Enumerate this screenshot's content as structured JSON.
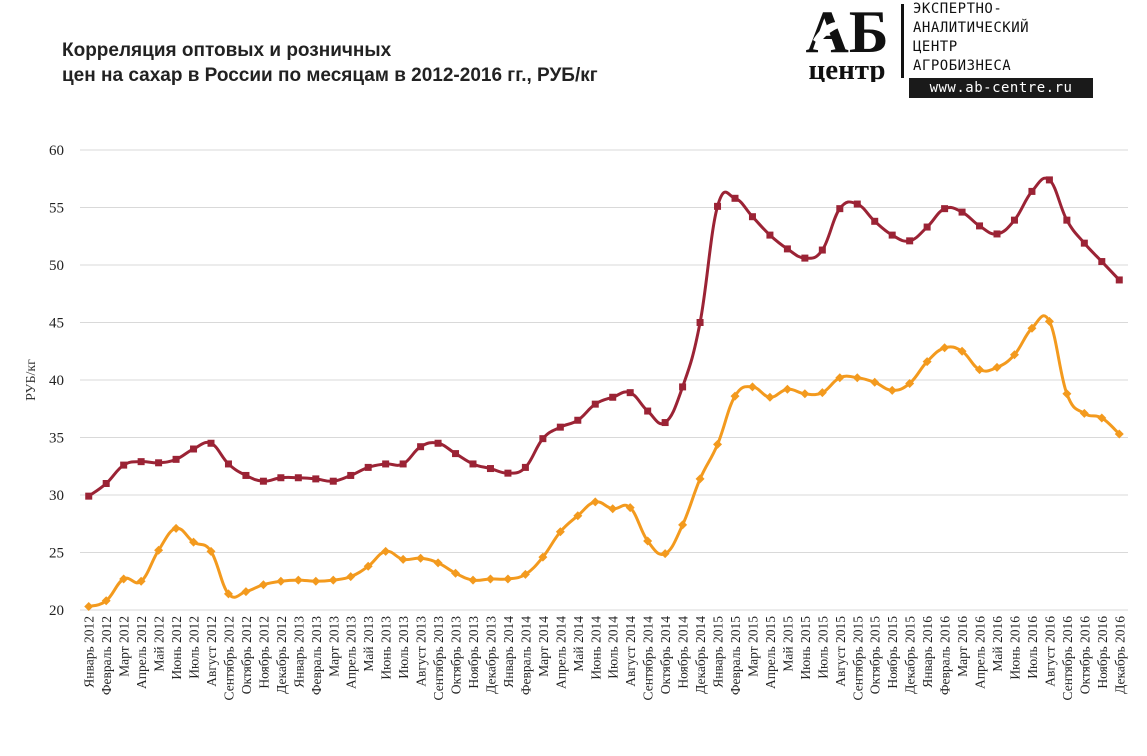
{
  "title_line1": "Корреляция оптовых и розничных",
  "title_line2": "цен на сахар в России по месяцам в 2012-2016 гг., РУБ/кг",
  "logo": {
    "mark_top": "АБ",
    "mark_bottom": "центр",
    "text_lines": [
      "ЭКСПЕРТНО-",
      "АНАЛИТИЧЕСКИЙ",
      "ЦЕНТР",
      "АГРОБИЗНЕСА"
    ],
    "url": "www.ab-centre.ru"
  },
  "colors": {
    "retail": "#9b2335",
    "wholesale": "#f39a1e",
    "grid": "#d9d9d9"
  },
  "chart_data": {
    "type": "line",
    "ylabel": "РУБ/кг",
    "ylim": [
      20,
      60
    ],
    "yticks": [
      20,
      25,
      30,
      35,
      40,
      45,
      50,
      55,
      60
    ],
    "grid": true,
    "categories": [
      "Январь 2012",
      "Февраль 2012",
      "Март 2012",
      "Апрель 2012",
      "Май 2012",
      "Июнь 2012",
      "Июль 2012",
      "Август 2012",
      "Сентябрь 2012",
      "Октябрь 2012",
      "Ноябрь 2012",
      "Декабрь 2012",
      "Январь 2013",
      "Февраль 2013",
      "Март 2013",
      "Апрель 2013",
      "Май 2013",
      "Июнь 2013",
      "Июль 2013",
      "Август 2013",
      "Сентябрь 2013",
      "Октябрь 2013",
      "Ноябрь 2013",
      "Декабрь 2013",
      "Январь 2014",
      "Февраль 2014",
      "Март 2014",
      "Апрель 2014",
      "Май 2014",
      "Июнь 2014",
      "Июль 2014",
      "Август 2014",
      "Сентябрь 2014",
      "Октябрь 2014",
      "Ноябрь 2014",
      "Декабрь 2014",
      "Январь 2015",
      "Февраль 2015",
      "Март 2015",
      "Апрель 2015",
      "Май 2015",
      "Июнь 2015",
      "Июль 2015",
      "Август 2015",
      "Сентябрь 2015",
      "Октябрь 2015",
      "Ноябрь 2015",
      "Декабрь 2015",
      "Январь 2016",
      "Февраль 2016",
      "Март 2016",
      "Апрель 2016",
      "Май 2016",
      "Июнь 2016",
      "Июль 2016",
      "Август 2016",
      "Сентябрь 2016",
      "Октябрь 2016",
      "Ноябрь 2016",
      "Декабрь 2016"
    ],
    "series": [
      {
        "key": "retail",
        "values": [
          29.9,
          31.0,
          32.6,
          32.9,
          32.8,
          33.1,
          34.0,
          34.5,
          32.7,
          31.7,
          31.2,
          31.5,
          31.5,
          31.4,
          31.2,
          31.7,
          32.4,
          32.7,
          32.7,
          34.2,
          34.5,
          33.6,
          32.7,
          32.3,
          31.9,
          32.4,
          34.9,
          35.9,
          36.5,
          37.9,
          38.5,
          38.9,
          37.3,
          36.3,
          39.4,
          45.0,
          55.1,
          55.8,
          54.2,
          52.6,
          51.4,
          50.6,
          51.3,
          54.9,
          55.3,
          53.8,
          52.6,
          52.1,
          53.3,
          54.9,
          54.6,
          53.4,
          52.7,
          53.9,
          56.4,
          57.4,
          53.9,
          51.9,
          50.3,
          48.7
        ]
      },
      {
        "key": "wholesale",
        "values": [
          20.3,
          20.8,
          22.7,
          22.5,
          25.2,
          27.1,
          25.9,
          25.1,
          21.4,
          21.6,
          22.2,
          22.5,
          22.6,
          22.5,
          22.6,
          22.9,
          23.8,
          25.1,
          24.4,
          24.5,
          24.1,
          23.2,
          22.6,
          22.7,
          22.7,
          23.1,
          24.6,
          26.8,
          28.2,
          29.4,
          28.8,
          28.9,
          26.0,
          24.9,
          27.4,
          31.4,
          34.4,
          38.6,
          39.4,
          38.5,
          39.2,
          38.8,
          38.9,
          40.2,
          40.2,
          39.8,
          39.1,
          39.7,
          41.6,
          42.8,
          42.5,
          40.9,
          41.1,
          42.2,
          44.5,
          45.1,
          38.8,
          37.1,
          36.7,
          35.3
        ]
      }
    ]
  }
}
